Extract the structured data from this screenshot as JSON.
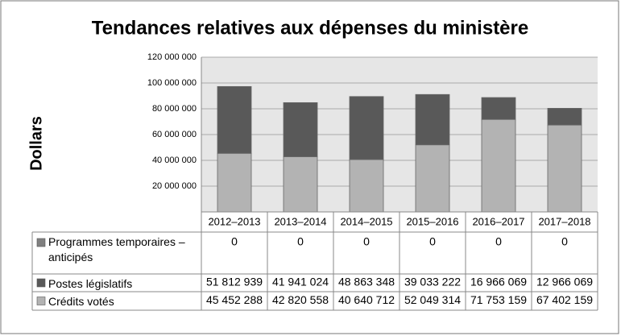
{
  "chart_data": {
    "type": "stacked-bar",
    "title": "Tendances relatives aux dépenses du ministère",
    "y_label": "Dollars",
    "categories": [
      "2012–2013",
      "2013–2014",
      "2014–2015",
      "2015–2016",
      "2016–2017",
      "2017–2018"
    ],
    "series": [
      {
        "name": "Programmes temporaires – anticipés",
        "color": "#808080",
        "values": [
          0,
          0,
          0,
          0,
          0,
          0
        ]
      },
      {
        "name": "Postes législatifs",
        "color": "#595959",
        "values": [
          51812939,
          41941024,
          48863348,
          39033222,
          16966069,
          12966069
        ],
        "value_labels": [
          "51 812 939",
          "41 941 024",
          "48 863 348",
          "39 033 222",
          "16 966 069",
          "12 966 069"
        ]
      },
      {
        "name": "Crédits votés",
        "color": "#b3b3b3",
        "values": [
          45452288,
          42820558,
          40640712,
          52049314,
          71753159,
          67402159
        ],
        "value_labels": [
          "45 452 288",
          "42 820 558",
          "40 640 712",
          "52 049 314",
          "71 753 159",
          "67 402 159"
        ]
      }
    ],
    "ylim": [
      0,
      120000000
    ],
    "yticks": [
      {
        "value": 20000000,
        "label": "20 000 000"
      },
      {
        "value": 40000000,
        "label": "40 000 000"
      },
      {
        "value": 60000000,
        "label": "60 000 000"
      },
      {
        "value": 80000000,
        "label": "80 000 000"
      },
      {
        "value": 100000000,
        "label": "100 000 000"
      },
      {
        "value": 120000000,
        "label": "120 000 000"
      }
    ],
    "grid": true
  }
}
